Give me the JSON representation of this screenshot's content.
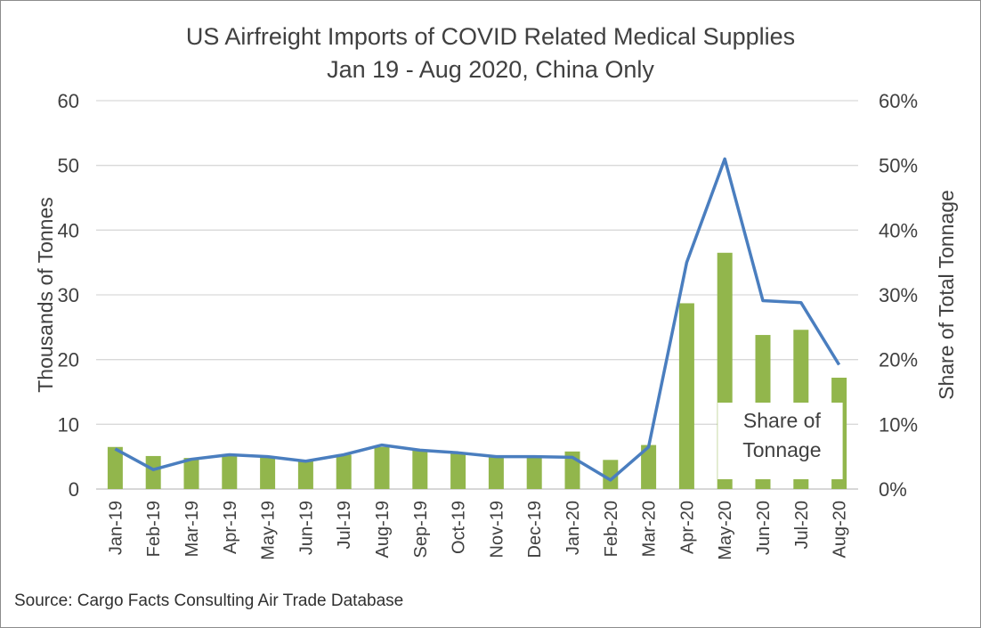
{
  "chart_data": {
    "type": "bar+line",
    "title": "US Airfreight Imports of COVID Related Medical Supplies",
    "subtitle": "Jan 19 - Aug 2020, China Only",
    "categories": [
      "Jan-19",
      "Feb-19",
      "Mar-19",
      "Apr-19",
      "May-19",
      "Jun-19",
      "Jul-19",
      "Aug-19",
      "Sep-19",
      "Oct-19",
      "Nov-19",
      "Dec-19",
      "Jan-20",
      "Feb-20",
      "Mar-20",
      "Apr-20",
      "May-20",
      "Jun-20",
      "Jul-20",
      "Aug-20"
    ],
    "bars": {
      "axis": "left",
      "color": "#92b64c",
      "values": [
        6.5,
        5.1,
        4.8,
        5.2,
        5.0,
        4.3,
        5.3,
        6.5,
        6.0,
        5.6,
        4.9,
        5.2,
        5.8,
        4.5,
        6.8,
        28.7,
        36.5,
        23.8,
        24.6,
        17.2
      ]
    },
    "line": {
      "axis": "right",
      "color": "#4a7ebf",
      "values": [
        6.2,
        3.0,
        4.6,
        5.3,
        5.0,
        4.3,
        5.3,
        6.8,
        6.0,
        5.6,
        5.0,
        5.0,
        4.9,
        1.4,
        6.5,
        35.0,
        51.0,
        29.1,
        28.8,
        19.2
      ]
    },
    "ylabel": "Thousands of Tonnes",
    "y2label": "Share of Total Tonnage",
    "ylim": [
      0,
      60
    ],
    "y2lim": [
      0,
      0.6
    ],
    "yticks": [
      "0",
      "10",
      "20",
      "30",
      "40",
      "50",
      "60"
    ],
    "y2ticks": [
      "0%",
      "10%",
      "20%",
      "30%",
      "40%",
      "50%",
      "60%"
    ],
    "grid": true,
    "annotation": {
      "line1": "Share of",
      "line2": "Tonnage"
    }
  },
  "source": "Source: Cargo Facts Consulting Air Trade Database"
}
